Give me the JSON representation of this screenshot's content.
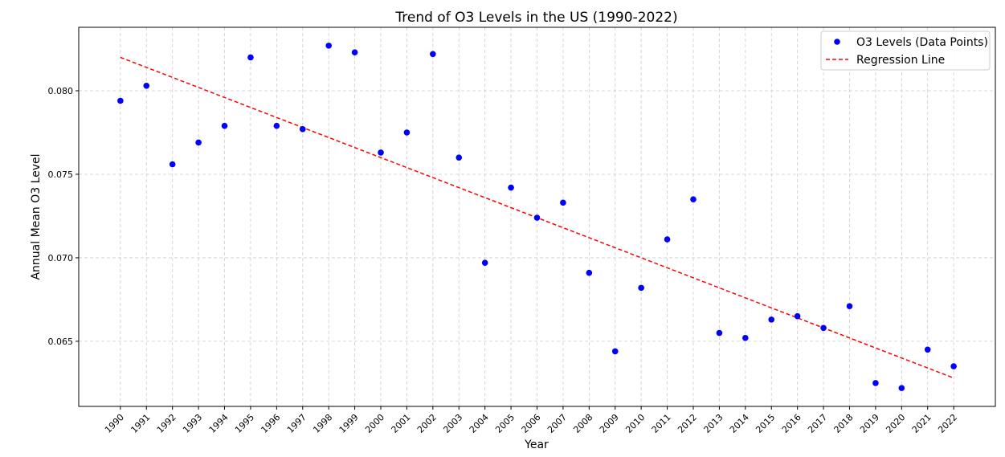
{
  "chart_data": {
    "type": "scatter",
    "title": "Trend of O3 Levels in the US (1990-2022)",
    "xlabel": "Year",
    "ylabel": "Annual Mean O3 Level",
    "x": [
      1990,
      1991,
      1992,
      1993,
      1994,
      1995,
      1996,
      1997,
      1998,
      1999,
      2000,
      2001,
      2002,
      2003,
      2004,
      2005,
      2006,
      2007,
      2008,
      2009,
      2010,
      2011,
      2012,
      2013,
      2014,
      2015,
      2016,
      2017,
      2018,
      2019,
      2020,
      2021,
      2022
    ],
    "x_tick_labels": [
      "1990",
      "1991",
      "1992",
      "1993",
      "1994",
      "1995",
      "1996",
      "1997",
      "1998",
      "1999",
      "2000",
      "2001",
      "2002",
      "2003",
      "2004",
      "2005",
      "2006",
      "2007",
      "2008",
      "2009",
      "2010",
      "2011",
      "2012",
      "2013",
      "2014",
      "2015",
      "2016",
      "2017",
      "2018",
      "2019",
      "2020",
      "2021",
      "2022"
    ],
    "y_ticks": [
      0.065,
      0.07,
      0.075,
      0.08
    ],
    "y_tick_labels": [
      "0.065",
      "0.070",
      "0.075",
      "0.080"
    ],
    "xlim": [
      1988.4,
      2023.6
    ],
    "ylim": [
      0.0611,
      0.0838
    ],
    "grid": true,
    "legend_position": "top-right",
    "series": [
      {
        "name": "O3 Levels (Data Points)",
        "kind": "scatter",
        "color": "#0000ff",
        "values": [
          0.0794,
          0.0803,
          0.0756,
          0.0769,
          0.0779,
          0.082,
          0.0779,
          0.0777,
          0.0827,
          0.0823,
          0.0763,
          0.0775,
          0.0822,
          0.076,
          0.0697,
          0.0742,
          0.0724,
          0.0733,
          0.0691,
          0.0644,
          0.0682,
          0.0711,
          0.0735,
          0.0655,
          0.0652,
          0.0663,
          0.0665,
          0.0658,
          0.0671,
          0.0625,
          0.0622,
          0.0645,
          0.0635
        ]
      },
      {
        "name": "Regression Line",
        "kind": "line",
        "style": "dashed",
        "color": "#ff0000",
        "x": [
          1990,
          2022
        ],
        "values": [
          0.082,
          0.0628
        ]
      }
    ]
  }
}
